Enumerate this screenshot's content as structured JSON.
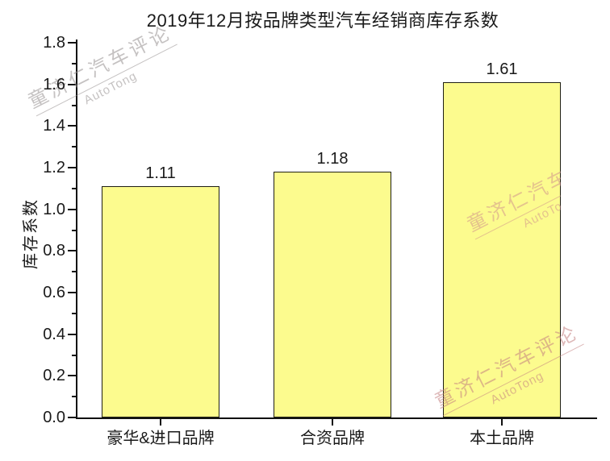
{
  "title": "2019年12月按品牌类型汽车经销商库存系数",
  "watermark": {
    "brand": "童济仁汽车评论",
    "latin": "AutoTong"
  },
  "chart_data": {
    "type": "bar",
    "title": "2019年12月按品牌类型汽车经销商库存系数",
    "categories": [
      "豪华&进口品牌",
      "合资品牌",
      "本土品牌"
    ],
    "values": [
      1.11,
      1.18,
      1.61
    ],
    "data_labels": [
      "1.11",
      "1.18",
      "1.61"
    ],
    "xlabel": "",
    "ylabel": "库存系数",
    "ylim": [
      0,
      1.8
    ],
    "ytick_interval": 0.2,
    "minor_ytick_interval": 0.1,
    "yticks": [
      "0.0",
      "0.2",
      "0.4",
      "0.6",
      "0.8",
      "1.0",
      "1.2",
      "1.4",
      "1.6",
      "1.8"
    ],
    "grid": false,
    "legend_position": "none",
    "bar_fill_color": "#FCFB8E",
    "bar_border_color": "#1f1f14",
    "axis_color": "#111111",
    "text_color": "#1a1a1a",
    "watermark_color": "#C08080"
  }
}
